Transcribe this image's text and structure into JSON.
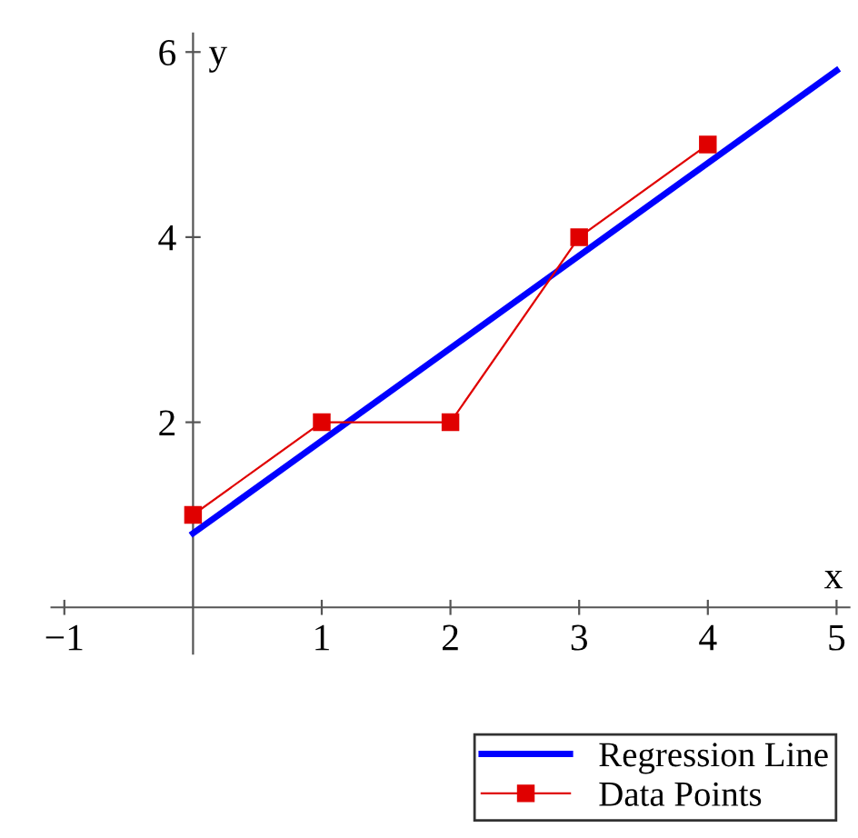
{
  "chart_data": {
    "type": "line",
    "xlabel": "x",
    "ylabel": "y",
    "xlim": [
      -1.1,
      5.1
    ],
    "ylim": [
      -0.5,
      6.2
    ],
    "xticks": [
      -1,
      1,
      2,
      3,
      4,
      5
    ],
    "yticks": [
      2,
      4,
      6
    ],
    "grid": false,
    "legend": "bottom right",
    "series": [
      {
        "name": "Regression Line",
        "color": "#0000ff",
        "x": [
          0,
          5
        ],
        "values": [
          0.8,
          5.8
        ],
        "marker": "none",
        "line_style": "solid"
      },
      {
        "name": "Data Points",
        "color": "#e00000",
        "x": [
          0,
          1,
          2,
          3,
          4
        ],
        "values": [
          1,
          2,
          2,
          4,
          5
        ],
        "marker": "square",
        "line_style": "solid"
      }
    ]
  }
}
